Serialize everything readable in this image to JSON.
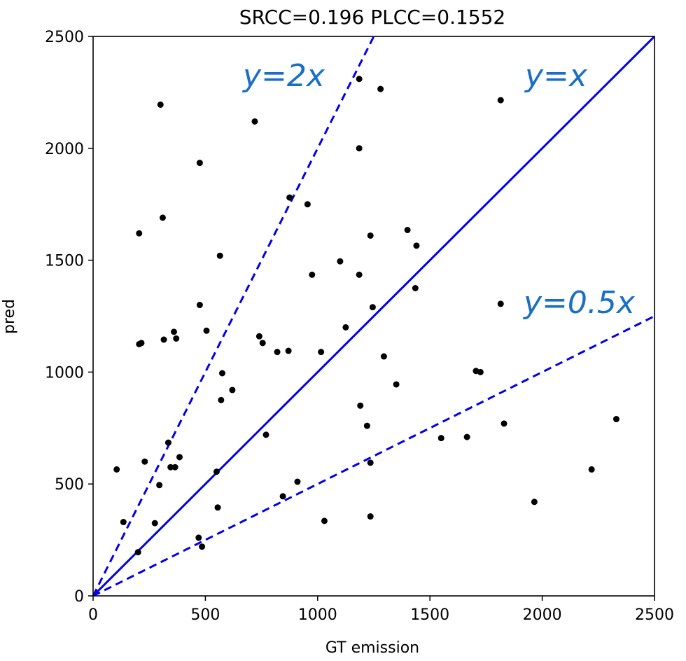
{
  "chart_data": {
    "type": "scatter",
    "title": "SRCC=0.196 PLCC=0.1552",
    "xlabel": "GT emission",
    "ylabel": "pred",
    "xlim": [
      0,
      2500
    ],
    "ylim": [
      0,
      2500
    ],
    "xticks": [
      "0",
      "500",
      "1000",
      "1500",
      "2000",
      "2500"
    ],
    "yticks": [
      "0",
      "500",
      "1000",
      "1500",
      "2000",
      "2500"
    ],
    "grid": false,
    "point_color": "#000000",
    "reference_lines": [
      {
        "label": "y=x",
        "slope": 1,
        "style": "solid",
        "color": "#0000ee"
      },
      {
        "label": "y=2x",
        "slope": 2,
        "style": "dashed",
        "color": "#0000ee"
      },
      {
        "label": "y=0.5x",
        "slope": 0.5,
        "style": "dashed",
        "color": "#0000ee"
      }
    ],
    "annotation_color": "#1a6fc4",
    "points": [
      {
        "x": 105,
        "y": 565
      },
      {
        "x": 135,
        "y": 330
      },
      {
        "x": 200,
        "y": 195
      },
      {
        "x": 205,
        "y": 1620
      },
      {
        "x": 205,
        "y": 1125
      },
      {
        "x": 215,
        "y": 1130
      },
      {
        "x": 230,
        "y": 600
      },
      {
        "x": 275,
        "y": 325
      },
      {
        "x": 295,
        "y": 495
      },
      {
        "x": 300,
        "y": 2195
      },
      {
        "x": 310,
        "y": 1690
      },
      {
        "x": 315,
        "y": 1145
      },
      {
        "x": 335,
        "y": 685
      },
      {
        "x": 345,
        "y": 575
      },
      {
        "x": 360,
        "y": 1180
      },
      {
        "x": 365,
        "y": 575
      },
      {
        "x": 370,
        "y": 1150
      },
      {
        "x": 385,
        "y": 620
      },
      {
        "x": 470,
        "y": 260
      },
      {
        "x": 475,
        "y": 1300
      },
      {
        "x": 475,
        "y": 1935
      },
      {
        "x": 485,
        "y": 220
      },
      {
        "x": 505,
        "y": 1185
      },
      {
        "x": 550,
        "y": 555
      },
      {
        "x": 555,
        "y": 395
      },
      {
        "x": 565,
        "y": 1520
      },
      {
        "x": 570,
        "y": 875
      },
      {
        "x": 575,
        "y": 995
      },
      {
        "x": 620,
        "y": 920
      },
      {
        "x": 720,
        "y": 2120
      },
      {
        "x": 740,
        "y": 1160
      },
      {
        "x": 755,
        "y": 1130
      },
      {
        "x": 770,
        "y": 720
      },
      {
        "x": 820,
        "y": 1090
      },
      {
        "x": 845,
        "y": 445
      },
      {
        "x": 870,
        "y": 1095
      },
      {
        "x": 875,
        "y": 1780
      },
      {
        "x": 910,
        "y": 510
      },
      {
        "x": 955,
        "y": 1750
      },
      {
        "x": 975,
        "y": 1435
      },
      {
        "x": 1015,
        "y": 1090
      },
      {
        "x": 1030,
        "y": 335
      },
      {
        "x": 1100,
        "y": 1495
      },
      {
        "x": 1125,
        "y": 1200
      },
      {
        "x": 1185,
        "y": 2310
      },
      {
        "x": 1185,
        "y": 2000
      },
      {
        "x": 1185,
        "y": 1435
      },
      {
        "x": 1190,
        "y": 850
      },
      {
        "x": 1220,
        "y": 760
      },
      {
        "x": 1235,
        "y": 1610
      },
      {
        "x": 1235,
        "y": 595
      },
      {
        "x": 1235,
        "y": 355
      },
      {
        "x": 1245,
        "y": 1290
      },
      {
        "x": 1280,
        "y": 2265
      },
      {
        "x": 1295,
        "y": 1070
      },
      {
        "x": 1350,
        "y": 945
      },
      {
        "x": 1400,
        "y": 1635
      },
      {
        "x": 1435,
        "y": 1375
      },
      {
        "x": 1440,
        "y": 1565
      },
      {
        "x": 1550,
        "y": 705
      },
      {
        "x": 1665,
        "y": 710
      },
      {
        "x": 1705,
        "y": 1005
      },
      {
        "x": 1725,
        "y": 1000
      },
      {
        "x": 1815,
        "y": 2215
      },
      {
        "x": 1815,
        "y": 1305
      },
      {
        "x": 1830,
        "y": 770
      },
      {
        "x": 1965,
        "y": 420
      },
      {
        "x": 2220,
        "y": 565
      },
      {
        "x": 2330,
        "y": 790
      }
    ]
  }
}
